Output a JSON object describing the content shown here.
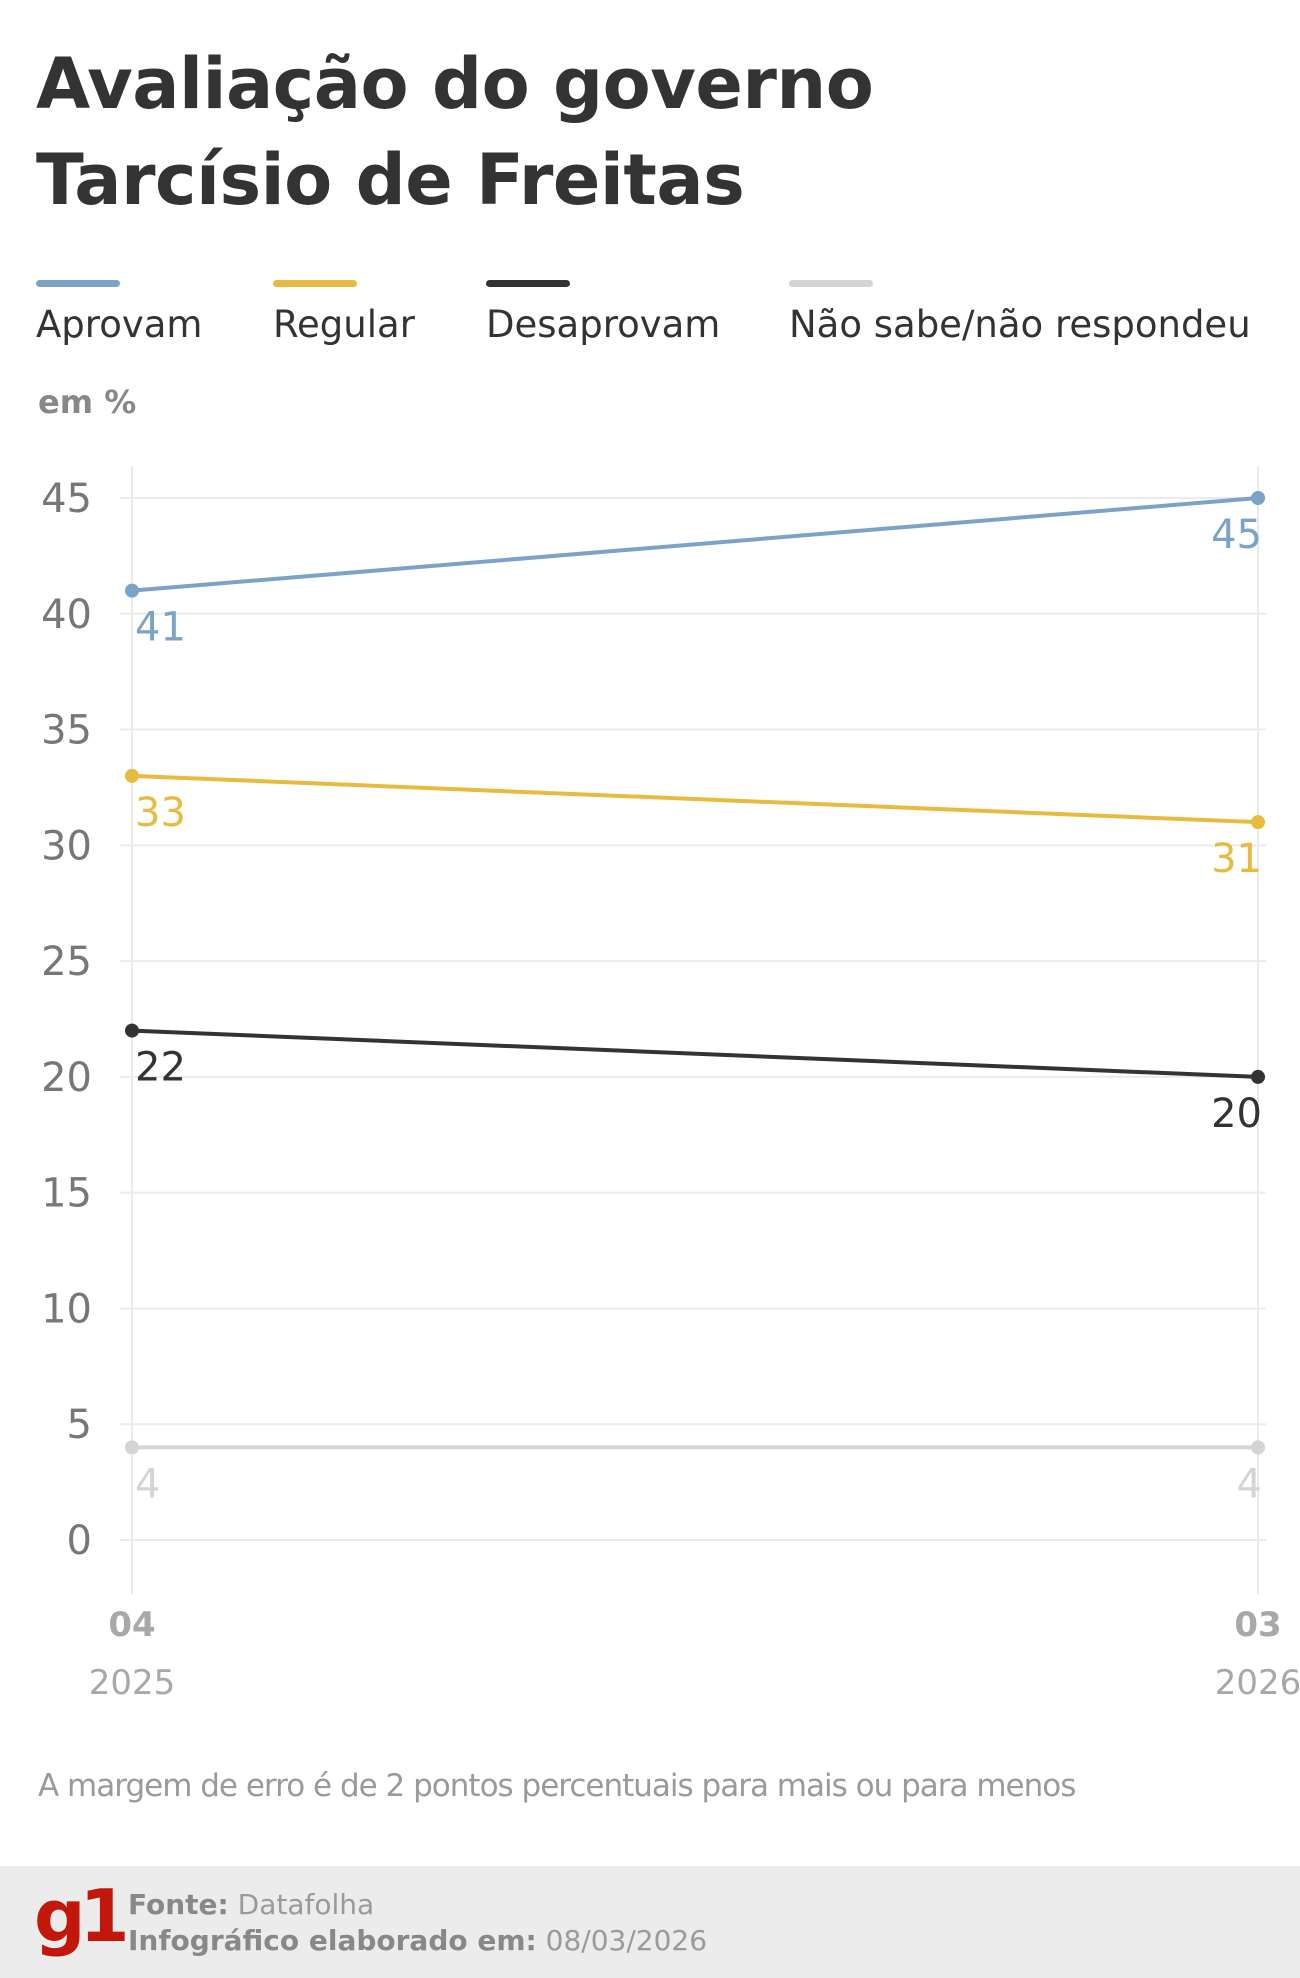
{
  "title_line1": "Avaliação do governo",
  "title_line2": "Tarcísio de Freitas",
  "unit_label": "em %",
  "legend": [
    {
      "label": "Aprovam",
      "color": "#7ba3c7"
    },
    {
      "label": "Regular",
      "color": "#e6bb3f"
    },
    {
      "label": "Desaprovam",
      "color": "#333333"
    },
    {
      "label": "Não sabe/não respondeu",
      "color": "#d4d4d4"
    }
  ],
  "chart_data": {
    "type": "line",
    "title": "Avaliação do governo Tarcísio de Freitas",
    "ylabel": "em %",
    "ylim": [
      0,
      45
    ],
    "yticks": [
      "45",
      "40",
      "35",
      "30",
      "25",
      "20",
      "15",
      "10",
      "5",
      "0"
    ],
    "grid": true,
    "categories": [
      {
        "month": "04",
        "year": "2025"
      },
      {
        "month": "03",
        "year": "2026"
      }
    ],
    "series": [
      {
        "name": "Aprovam",
        "color": "#7ba3c7",
        "values": [
          41,
          45
        ],
        "labels": [
          "41",
          "45"
        ]
      },
      {
        "name": "Regular",
        "color": "#e6bb3f",
        "values": [
          33,
          31
        ],
        "labels": [
          "33",
          "31"
        ]
      },
      {
        "name": "Desaprovam",
        "color": "#333333",
        "values": [
          22,
          20
        ],
        "labels": [
          "22",
          "20"
        ]
      },
      {
        "name": "Não sabe/não respondeu",
        "color": "#d4d4d4",
        "values": [
          4,
          4
        ],
        "labels": [
          "4",
          "4"
        ]
      }
    ]
  },
  "note": "A margem de erro é de 2 pontos percentuais para mais ou para menos",
  "footer": {
    "logo": "g1",
    "source_label": "Fonte:",
    "source_value": "Datafolha",
    "date_label": "Infográfico elaborado em:",
    "date_value": "08/03/2026"
  }
}
